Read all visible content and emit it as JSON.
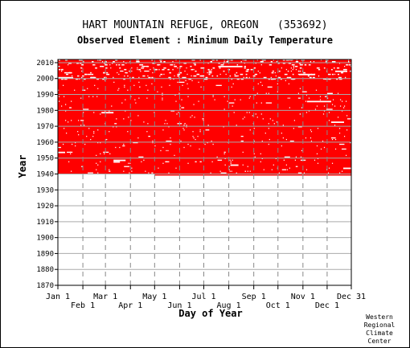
{
  "chart_data": {
    "type": "heatmap",
    "title": "HART MOUNTAIN REFUGE, OREGON   (353692)",
    "subtitle": "Observed Element : Minimum Daily Temperature",
    "xlabel": "Day of Year",
    "ylabel": "Year",
    "x_ticks_row1": [
      "Jan 1",
      "Mar 1",
      "May 1",
      "Jul 1",
      "Sep 1",
      "Nov 1",
      "Dec 31"
    ],
    "x_ticks_row2": [
      "Feb 1",
      "Apr 1",
      "Jun 1",
      "Aug 1",
      "Oct 1",
      "Dec 1"
    ],
    "y_ticks": [
      "1870",
      "1880",
      "1890",
      "1900",
      "1910",
      "1920",
      "1930",
      "1940",
      "1950",
      "1960",
      "1970",
      "1980",
      "1990",
      "2000",
      "2010"
    ],
    "ylim": [
      1870,
      2012
    ],
    "xlim": [
      1,
      365
    ],
    "grid": true,
    "data_coverage": {
      "observed_color": "#ff0000",
      "missing_color": "#ffffff",
      "record_start_year": 1940,
      "record_end_year": 2011
    }
  },
  "credit": [
    "Western",
    "Regional",
    "Climate",
    "Center"
  ]
}
